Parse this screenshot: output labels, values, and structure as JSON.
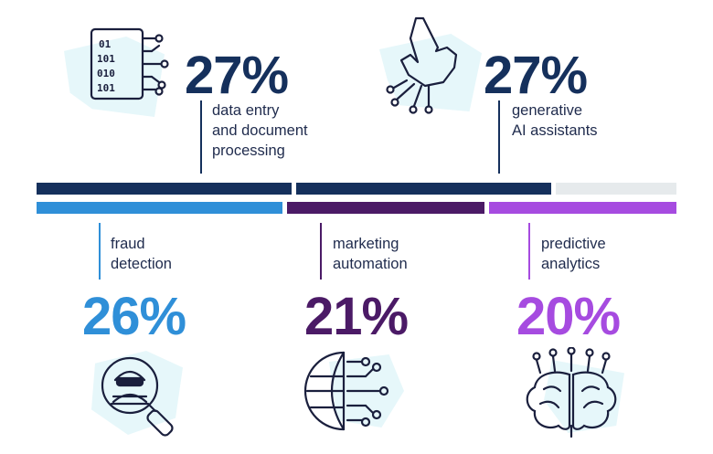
{
  "chart_data": {
    "type": "bar",
    "categories": [
      "data entry and document processing",
      "generative AI assistants",
      "fraud detection",
      "marketing automation",
      "predictive analytics"
    ],
    "values": [
      27,
      27,
      26,
      21,
      20
    ],
    "unit": "%"
  },
  "colors": {
    "navy": "#15305c",
    "blue": "#2f8fd8",
    "purple": "#4b1a66",
    "violet": "#a64be0",
    "remainder": "#e6eaec",
    "icon_fill": "#e6f7fa"
  },
  "top_items": [
    {
      "value_label": "27%",
      "label": "data entry\nand document\nprocessing",
      "icon": "binary-document-circuit-icon"
    },
    {
      "value_label": "27%",
      "label": "generative\nAI assistants",
      "icon": "pointing-robot-hand-icon"
    }
  ],
  "bottom_items": [
    {
      "value_label": "26%",
      "label": "fraud\ndetection",
      "icon": "magnifier-burglar-icon"
    },
    {
      "value_label": "21%",
      "label": "marketing\nautomation",
      "icon": "globe-network-icon"
    },
    {
      "value_label": "20%",
      "label": "predictive\nanalytics",
      "icon": "brain-circuit-icon"
    }
  ]
}
